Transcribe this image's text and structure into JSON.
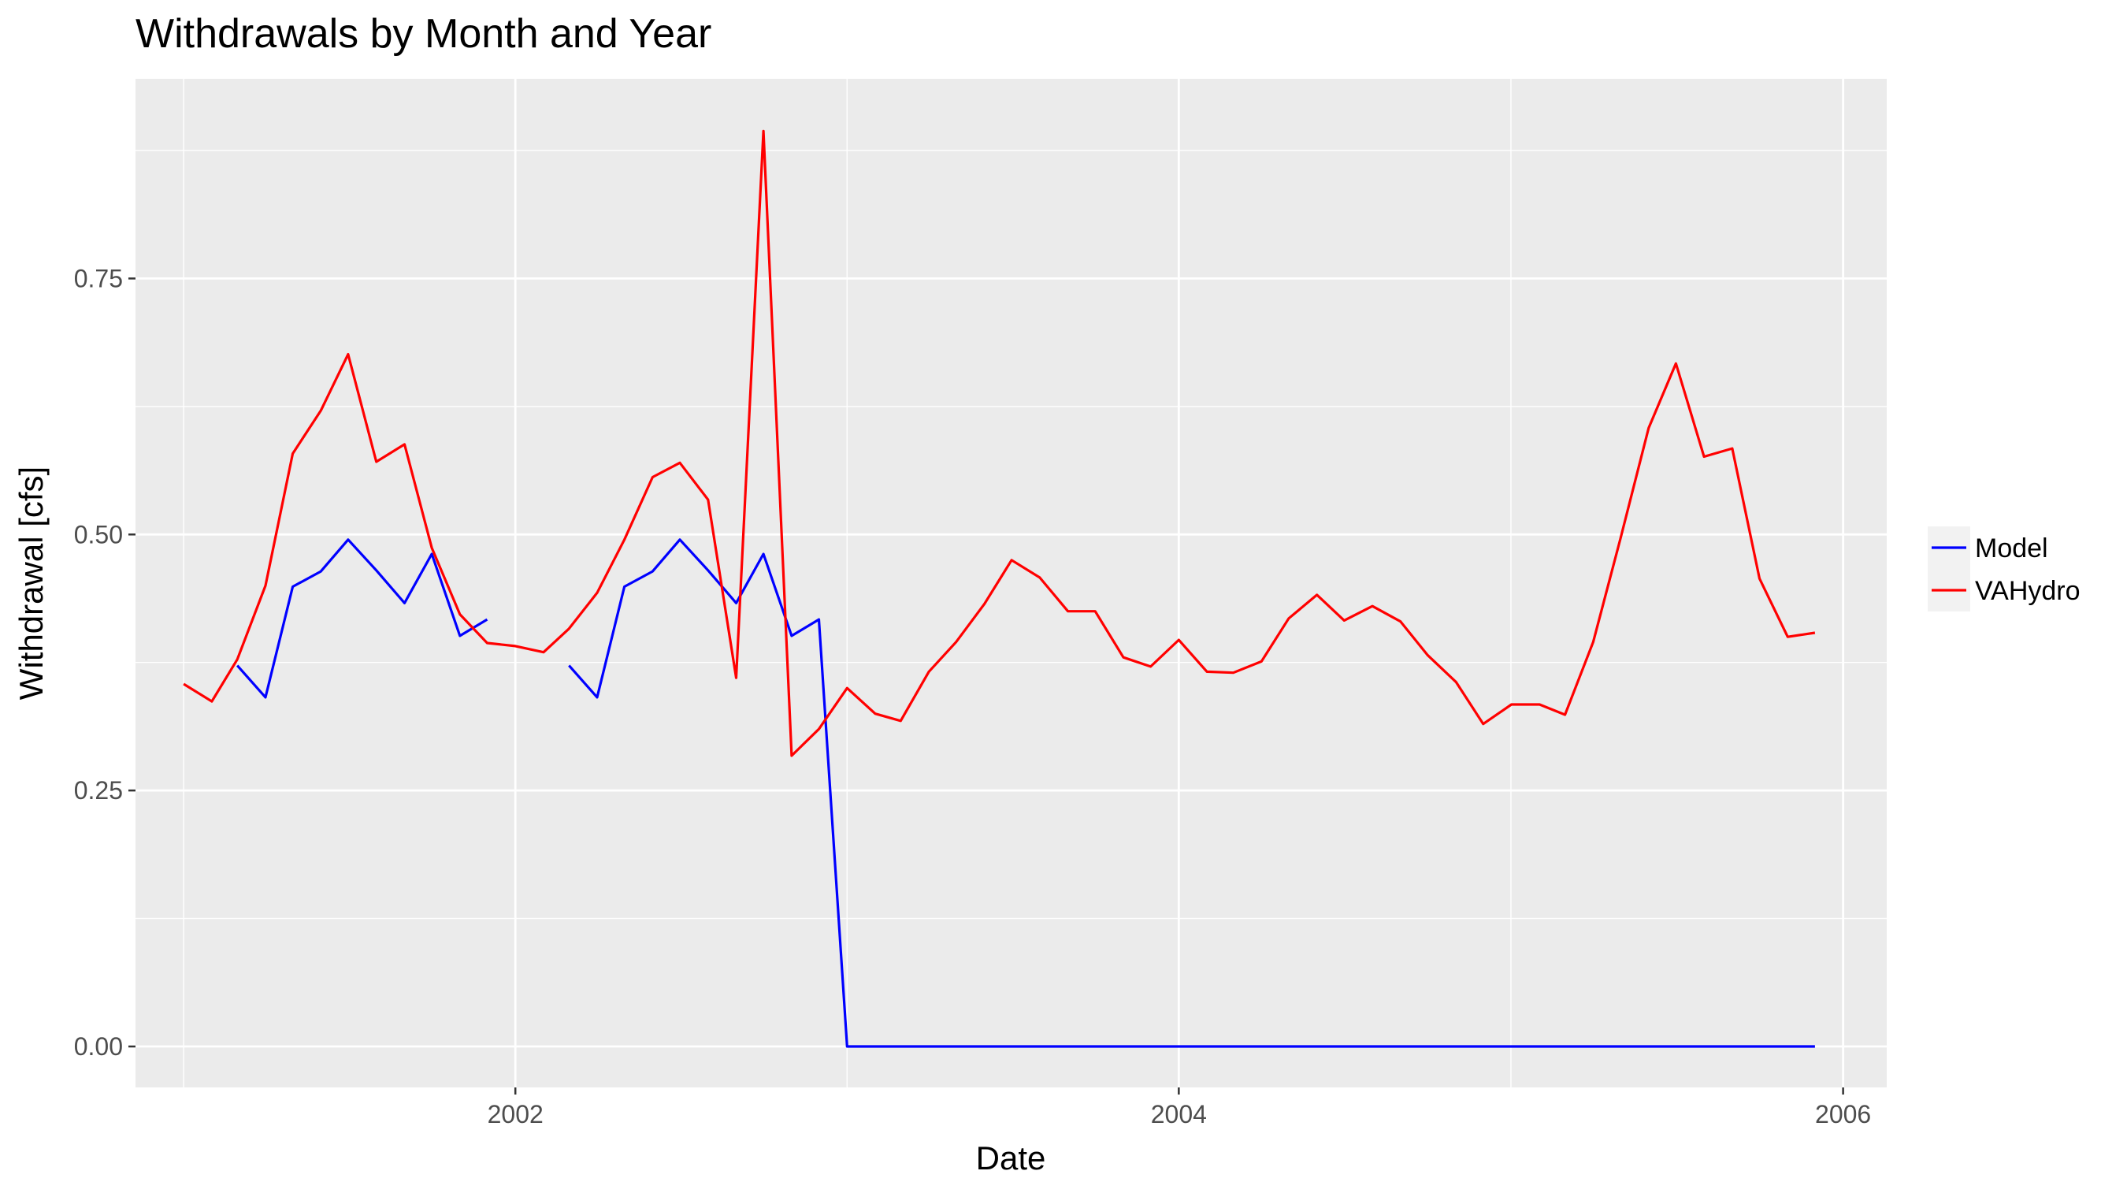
{
  "chart_data": {
    "type": "line",
    "title": "Withdrawals by Month and Year",
    "xlabel": "Date",
    "ylabel": "Withdrawal [cfs]",
    "xlim": [
      "2000-11-09",
      "2006-02-18"
    ],
    "ylim": [
      -0.04,
      0.945
    ],
    "x_ticks": [
      {
        "value": "2002-01-01",
        "label": "2002"
      },
      {
        "value": "2004-01-01",
        "label": "2004"
      },
      {
        "value": "2006-01-01",
        "label": "2006"
      }
    ],
    "y_ticks": [
      {
        "value": 0.0,
        "label": "0.00"
      },
      {
        "value": 0.25,
        "label": "0.25"
      },
      {
        "value": 0.5,
        "label": "0.50"
      },
      {
        "value": 0.75,
        "label": "0.75"
      }
    ],
    "grid": true,
    "legend_position": "right",
    "series": [
      {
        "name": "Model",
        "color": "#0000ff",
        "segments": [
          {
            "x": [
              "2001-03-01",
              "2001-04-01",
              "2001-05-01",
              "2001-06-01",
              "2001-07-01",
              "2001-08-01",
              "2001-09-01",
              "2001-10-01",
              "2001-11-01",
              "2001-12-01"
            ],
            "y": [
              0.372,
              0.341,
              0.449,
              0.464,
              0.495,
              0.465,
              0.433,
              0.481,
              0.401,
              0.417
            ]
          },
          {
            "x": [
              "2002-03-01",
              "2002-04-01",
              "2002-05-01",
              "2002-06-01",
              "2002-07-01",
              "2002-08-01",
              "2002-09-01",
              "2002-10-01",
              "2002-11-01",
              "2002-12-01",
              "2003-01-01",
              "2003-02-01",
              "2003-03-01",
              "2003-04-01",
              "2003-05-01",
              "2003-06-01",
              "2003-07-01",
              "2003-08-01",
              "2003-09-01",
              "2003-10-01",
              "2003-11-01",
              "2003-12-01",
              "2004-01-01",
              "2004-02-01",
              "2004-03-01",
              "2004-04-01",
              "2004-05-01",
              "2004-06-01",
              "2004-07-01",
              "2004-08-01",
              "2004-09-01",
              "2004-10-01",
              "2004-11-01",
              "2004-12-01",
              "2005-01-01",
              "2005-02-01",
              "2005-03-01",
              "2005-04-01",
              "2005-05-01",
              "2005-06-01",
              "2005-07-01",
              "2005-08-01",
              "2005-09-01",
              "2005-10-01",
              "2005-11-01",
              "2005-12-01"
            ],
            "y": [
              0.372,
              0.341,
              0.449,
              0.464,
              0.495,
              0.465,
              0.433,
              0.481,
              0.401,
              0.417,
              0.0,
              0.0,
              0.0,
              0.0,
              0.0,
              0.0,
              0.0,
              0.0,
              0.0,
              0.0,
              0.0,
              0.0,
              0.0,
              0.0,
              0.0,
              0.0,
              0.0,
              0.0,
              0.0,
              0.0,
              0.0,
              0.0,
              0.0,
              0.0,
              0.0,
              0.0,
              0.0,
              0.0,
              0.0,
              0.0,
              0.0,
              0.0,
              0.0,
              0.0,
              0.0,
              0.0
            ]
          }
        ]
      },
      {
        "name": "VAHydro",
        "color": "#ff0000",
        "segments": [
          {
            "x": [
              "2001-01-01",
              "2001-02-01",
              "2001-03-01",
              "2001-04-01",
              "2001-05-01",
              "2001-06-01",
              "2001-07-01",
              "2001-08-01",
              "2001-09-01",
              "2001-10-01",
              "2001-11-01",
              "2001-12-01",
              "2002-01-01",
              "2002-02-01",
              "2002-03-01",
              "2002-04-01",
              "2002-05-01",
              "2002-06-01",
              "2002-07-01",
              "2002-08-01",
              "2002-09-01",
              "2002-10-01",
              "2002-11-01",
              "2002-12-01",
              "2003-01-01",
              "2003-02-01",
              "2003-03-01",
              "2003-04-01",
              "2003-05-01",
              "2003-06-01",
              "2003-07-01",
              "2003-08-01",
              "2003-09-01",
              "2003-10-01",
              "2003-11-01",
              "2003-12-01",
              "2004-01-01",
              "2004-02-01",
              "2004-03-01",
              "2004-04-01",
              "2004-05-01",
              "2004-06-01",
              "2004-07-01",
              "2004-08-01",
              "2004-09-01",
              "2004-10-01",
              "2004-11-01",
              "2004-12-01",
              "2005-01-01",
              "2005-02-01",
              "2005-03-01",
              "2005-04-01",
              "2005-05-01",
              "2005-06-01",
              "2005-07-01",
              "2005-08-01",
              "2005-09-01",
              "2005-10-01",
              "2005-11-01",
              "2005-12-01"
            ],
            "y": [
              0.354,
              0.337,
              0.378,
              0.45,
              0.579,
              0.621,
              0.676,
              0.571,
              0.588,
              0.487,
              0.422,
              0.394,
              0.391,
              0.385,
              0.408,
              0.443,
              0.495,
              0.556,
              0.57,
              0.534,
              0.36,
              0.894,
              0.284,
              0.31,
              0.35,
              0.325,
              0.318,
              0.366,
              0.395,
              0.432,
              0.475,
              0.458,
              0.425,
              0.425,
              0.38,
              0.371,
              0.397,
              0.366,
              0.365,
              0.376,
              0.418,
              0.441,
              0.416,
              0.43,
              0.415,
              0.382,
              0.356,
              0.315,
              0.334,
              0.334,
              0.324,
              0.395,
              0.496,
              0.604,
              0.667,
              0.576,
              0.584,
              0.457,
              0.4,
              0.404
            ]
          }
        ]
      }
    ]
  }
}
